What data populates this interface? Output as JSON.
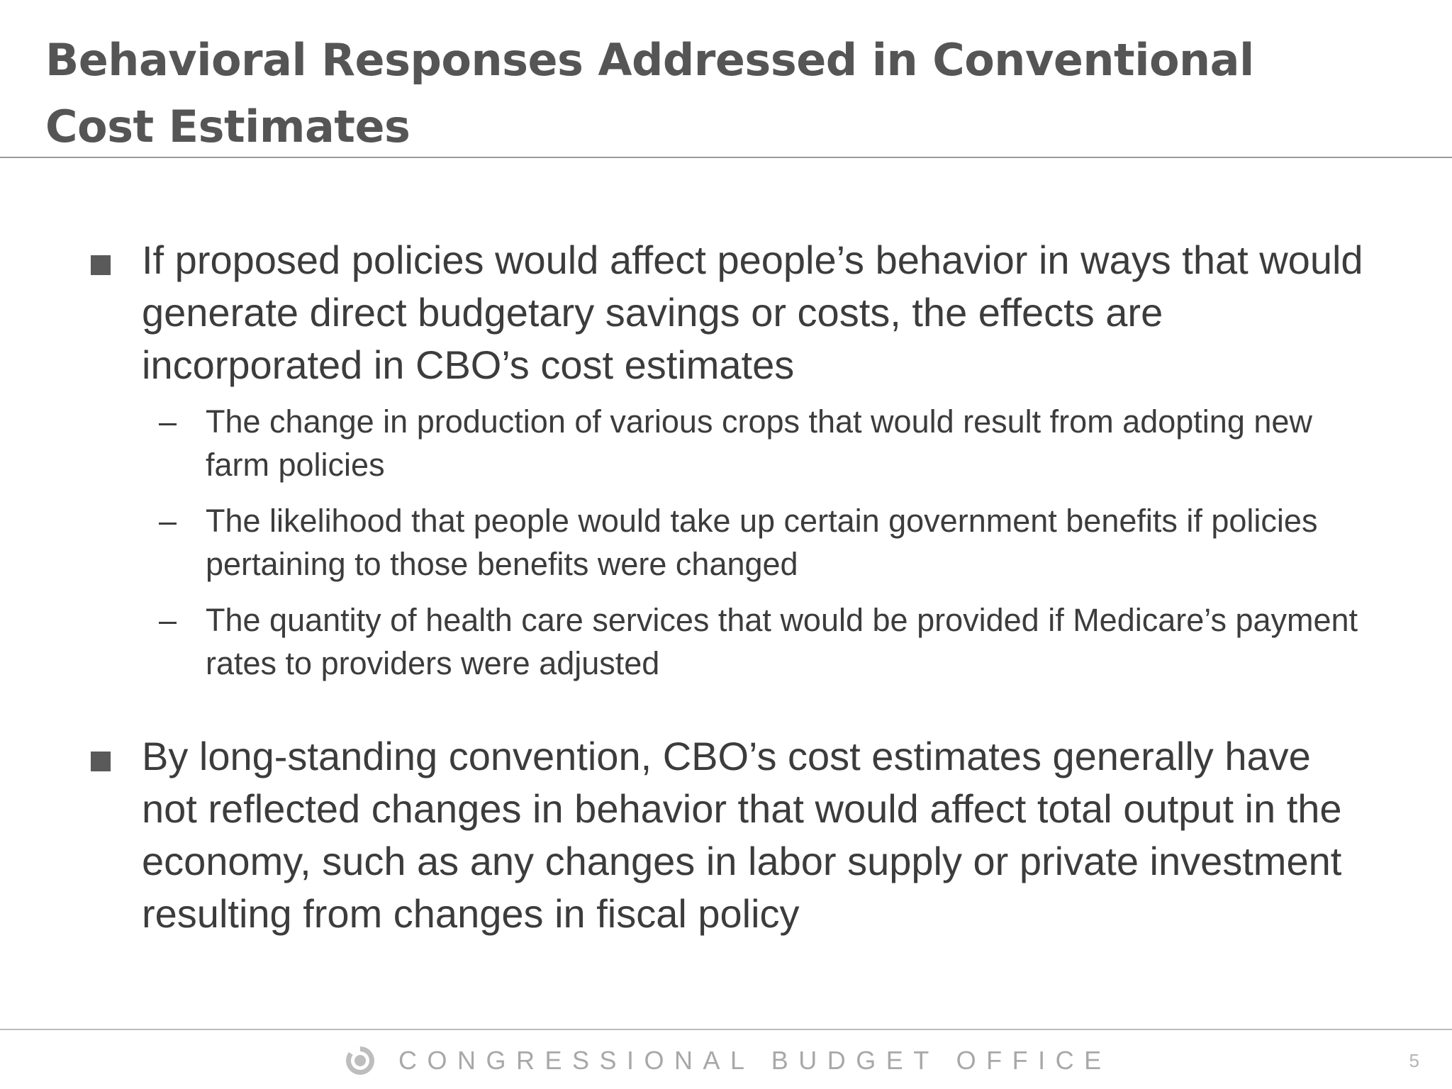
{
  "slide": {
    "title": "Behavioral Responses Addressed in Conventional Cost Estimates",
    "bullets": [
      {
        "text": "If proposed policies would affect people’s behavior in ways that would generate direct budgetary savings or costs, the effects are incorporated in CBO’s cost estimates",
        "sub_items": [
          "The change in production of various crops that would result from adopting new farm policies",
          "The likelihood that people would take up certain government benefits if policies pertaining to those benefits were changed",
          "The quantity of health care services that would be provided if Medicare’s payment rates to providers were adjusted"
        ]
      },
      {
        "text": "By long-standing convention, CBO’s cost estimates generally have not reflected changes in behavior that would affect total output in the economy, such as any changes in labor supply or private investment resulting from changes in fiscal policy",
        "sub_items": []
      }
    ],
    "sub_marker": "–"
  },
  "footer": {
    "organization": "CONGRESSIONAL BUDGET OFFICE",
    "logo_icon": "cbo-logo-icon",
    "page_number": "5"
  },
  "colors": {
    "title": "#555555",
    "body_text": "#3c3c3c",
    "bullet_marker": "#5a5a5a",
    "footer_text": "#a8a8a8",
    "rule": "#9a9a9a"
  }
}
